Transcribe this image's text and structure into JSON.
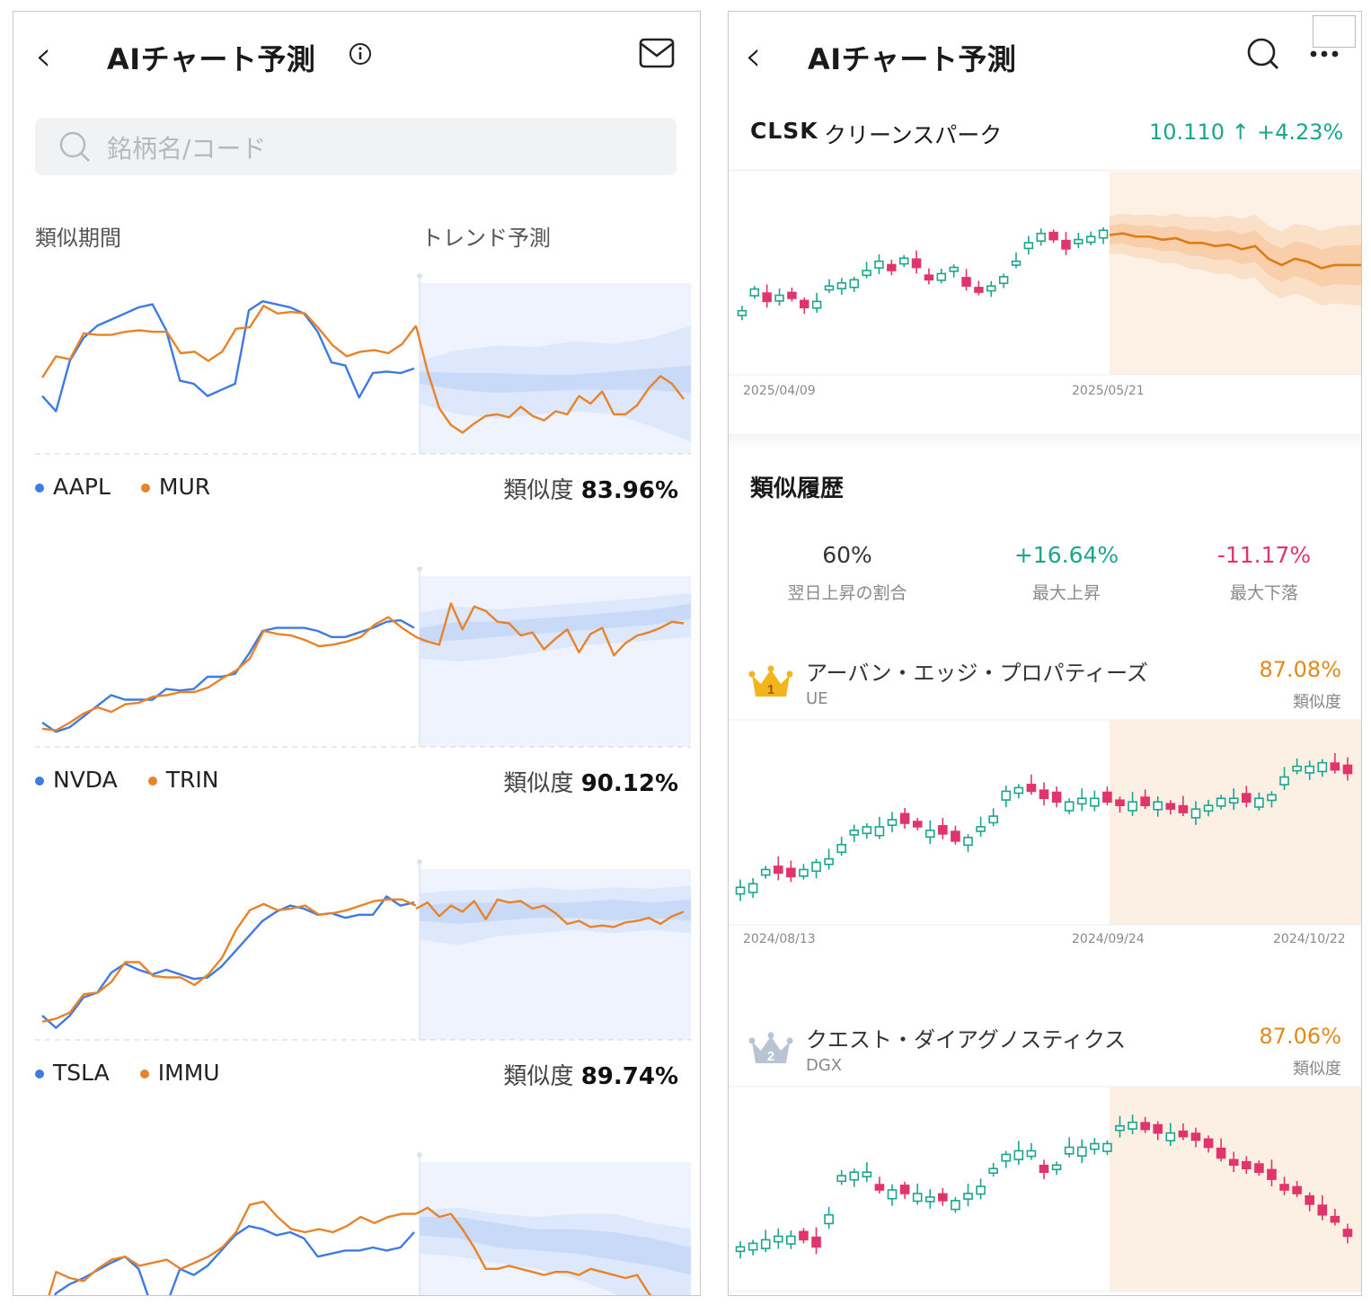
{
  "left": {
    "header": {
      "title": "AIチャート予測",
      "info_icon": "info-icon",
      "mail_icon": "mail-icon"
    },
    "search": {
      "placeholder": "銘柄名/コード"
    },
    "section_labels": {
      "similar_period": "類似期間",
      "trend_forecast": "トレンド予測"
    },
    "similarity_label": "類似度",
    "pairs": [
      {
        "a": "AAPL",
        "b": "MUR",
        "similarity": "83.96%",
        "blue": [
          0.32,
          0.22,
          0.55,
          0.7,
          0.78,
          0.82,
          0.86,
          0.9,
          0.92,
          0.75,
          0.42,
          0.4,
          0.32,
          0.36,
          0.4,
          0.88,
          0.94,
          0.92,
          0.9,
          0.86,
          0.74,
          0.54,
          0.52,
          0.31,
          0.47,
          0.48,
          0.47,
          0.5
        ],
        "orange": [
          0.44,
          0.58,
          0.56,
          0.73,
          0.72,
          0.72,
          0.74,
          0.75,
          0.74,
          0.74,
          0.6,
          0.61,
          0.55,
          0.61,
          0.76,
          0.77,
          0.91,
          0.86,
          0.87,
          0.86,
          0.76,
          0.65,
          0.58,
          0.61,
          0.62,
          0.6,
          0.66,
          0.78
        ],
        "forecast": [
          0.78,
          0.48,
          0.24,
          0.13,
          0.08,
          0.14,
          0.19,
          0.2,
          0.18,
          0.25,
          0.19,
          0.16,
          0.22,
          0.2,
          0.32,
          0.27,
          0.35,
          0.2,
          0.2,
          0.26,
          0.37,
          0.45,
          0.4,
          0.3
        ],
        "band_inner": [
          [
            0.48,
            0.4
          ],
          [
            0.47,
            0.36
          ],
          [
            0.47,
            0.34
          ],
          [
            0.46,
            0.35
          ],
          [
            0.46,
            0.36
          ],
          [
            0.48,
            0.36
          ],
          [
            0.5,
            0.36
          ],
          [
            0.52,
            0.34
          ]
        ],
        "band_outer": [
          [
            0.55,
            0.27
          ],
          [
            0.62,
            0.2
          ],
          [
            0.65,
            0.17
          ],
          [
            0.64,
            0.2
          ],
          [
            0.68,
            0.22
          ],
          [
            0.66,
            0.2
          ],
          [
            0.7,
            0.12
          ],
          [
            0.78,
            0.02
          ]
        ]
      },
      {
        "a": "NVDA",
        "b": "TRIN",
        "similarity": "90.12%",
        "blue": [
          0.1,
          0.04,
          0.07,
          0.14,
          0.21,
          0.28,
          0.25,
          0.25,
          0.25,
          0.32,
          0.31,
          0.32,
          0.4,
          0.4,
          0.42,
          0.55,
          0.7,
          0.72,
          0.72,
          0.72,
          0.7,
          0.66,
          0.66,
          0.69,
          0.72,
          0.76,
          0.77,
          0.72
        ],
        "orange": [
          0.06,
          0.05,
          0.1,
          0.16,
          0.2,
          0.17,
          0.22,
          0.23,
          0.27,
          0.28,
          0.3,
          0.3,
          0.33,
          0.39,
          0.44,
          0.52,
          0.7,
          0.68,
          0.67,
          0.64,
          0.6,
          0.61,
          0.63,
          0.66,
          0.74,
          0.79,
          0.72,
          0.66
        ],
        "forecast": [
          0.66,
          0.63,
          0.61,
          0.88,
          0.71,
          0.86,
          0.83,
          0.76,
          0.75,
          0.67,
          0.69,
          0.58,
          0.65,
          0.71,
          0.56,
          0.68,
          0.72,
          0.54,
          0.62,
          0.67,
          0.69,
          0.72,
          0.76,
          0.75
        ],
        "band_inner": [
          [
            0.72,
            0.62
          ],
          [
            0.76,
            0.64
          ],
          [
            0.76,
            0.66
          ],
          [
            0.78,
            0.68
          ],
          [
            0.8,
            0.7
          ],
          [
            0.82,
            0.72
          ],
          [
            0.84,
            0.74
          ],
          [
            0.88,
            0.78
          ]
        ],
        "band_outer": [
          [
            0.82,
            0.52
          ],
          [
            0.86,
            0.5
          ],
          [
            0.84,
            0.52
          ],
          [
            0.86,
            0.56
          ],
          [
            0.88,
            0.6
          ],
          [
            0.9,
            0.62
          ],
          [
            0.92,
            0.64
          ],
          [
            0.95,
            0.66
          ]
        ]
      },
      {
        "a": "TSLA",
        "b": "IMMU",
        "similarity": "89.74%",
        "blue": [
          0.1,
          0.02,
          0.1,
          0.22,
          0.25,
          0.38,
          0.44,
          0.4,
          0.37,
          0.4,
          0.37,
          0.34,
          0.35,
          0.42,
          0.52,
          0.62,
          0.72,
          0.78,
          0.82,
          0.8,
          0.76,
          0.77,
          0.74,
          0.76,
          0.76,
          0.88,
          0.82,
          0.84
        ],
        "orange": [
          0.06,
          0.08,
          0.12,
          0.24,
          0.25,
          0.32,
          0.45,
          0.45,
          0.36,
          0.35,
          0.35,
          0.3,
          0.37,
          0.48,
          0.66,
          0.79,
          0.83,
          0.79,
          0.8,
          0.82,
          0.76,
          0.77,
          0.79,
          0.82,
          0.85,
          0.86,
          0.86,
          0.82
        ],
        "forecast": [
          0.8,
          0.84,
          0.75,
          0.82,
          0.78,
          0.85,
          0.73,
          0.86,
          0.84,
          0.85,
          0.8,
          0.82,
          0.77,
          0.7,
          0.72,
          0.68,
          0.69,
          0.68,
          0.71,
          0.72,
          0.74,
          0.7,
          0.75,
          0.78
        ],
        "band_inner": [
          [
            0.82,
            0.72
          ],
          [
            0.84,
            0.7
          ],
          [
            0.84,
            0.72
          ],
          [
            0.84,
            0.74
          ],
          [
            0.84,
            0.74
          ],
          [
            0.86,
            0.72
          ],
          [
            0.84,
            0.74
          ],
          [
            0.86,
            0.72
          ]
        ],
        "band_outer": [
          [
            0.9,
            0.6
          ],
          [
            0.92,
            0.56
          ],
          [
            0.92,
            0.62
          ],
          [
            0.94,
            0.64
          ],
          [
            0.92,
            0.66
          ],
          [
            0.94,
            0.64
          ],
          [
            0.93,
            0.66
          ],
          [
            0.95,
            0.64
          ]
        ]
      },
      {
        "a": "",
        "b": "",
        "similarity": "",
        "blue": [
          0.02,
          0.2,
          0.26,
          0.3,
          0.35,
          0.4,
          0.44,
          0.36,
          0.1,
          0.12,
          0.36,
          0.32,
          0.38,
          0.48,
          0.58,
          0.64,
          0.62,
          0.58,
          0.6,
          0.56,
          0.44,
          0.46,
          0.48,
          0.48,
          0.5,
          0.48,
          0.5,
          0.6
        ],
        "orange": [
          0.04,
          0.34,
          0.3,
          0.28,
          0.36,
          0.42,
          0.44,
          0.38,
          0.4,
          0.42,
          0.36,
          0.4,
          0.44,
          0.5,
          0.6,
          0.78,
          0.8,
          0.7,
          0.62,
          0.6,
          0.62,
          0.6,
          0.64,
          0.7,
          0.66,
          0.7,
          0.72,
          0.72
        ],
        "forecast": [
          0.72,
          0.76,
          0.7,
          0.72,
          0.62,
          0.5,
          0.36,
          0.36,
          0.38,
          0.36,
          0.34,
          0.32,
          0.34,
          0.34,
          0.32,
          0.36,
          0.34,
          0.32,
          0.3,
          0.32,
          0.2,
          0.12,
          0.06,
          0.05
        ],
        "band_inner": [
          [
            0.7,
            0.58
          ],
          [
            0.7,
            0.56
          ],
          [
            0.66,
            0.5
          ],
          [
            0.62,
            0.48
          ],
          [
            0.62,
            0.46
          ],
          [
            0.6,
            0.42
          ],
          [
            0.56,
            0.38
          ],
          [
            0.5,
            0.32
          ]
        ],
        "band_outer": [
          [
            0.74,
            0.46
          ],
          [
            0.76,
            0.44
          ],
          [
            0.72,
            0.4
          ],
          [
            0.7,
            0.36
          ],
          [
            0.72,
            0.3
          ],
          [
            0.72,
            0.2
          ],
          [
            0.66,
            0.1
          ],
          [
            0.62,
            0.06
          ]
        ]
      }
    ]
  },
  "right": {
    "header": {
      "title": "AIチャート予測",
      "search_icon": "search-icon",
      "more_icon": "more-icon"
    },
    "stock": {
      "code": "CLSK",
      "name": "クリーンスパーク",
      "price": "10.110",
      "change": "+4.23%"
    },
    "main_chart": {
      "dates": [
        "2025/04/09",
        "2025/05/21"
      ],
      "candles": [
        0.24,
        0.38,
        0.3,
        0.34,
        0.32,
        0.26,
        0.3,
        0.4,
        0.42,
        0.44,
        0.5,
        0.56,
        0.5,
        0.58,
        0.52,
        0.44,
        0.48,
        0.52,
        0.4,
        0.36,
        0.4,
        0.46,
        0.56,
        0.68,
        0.74,
        0.7,
        0.64,
        0.7,
        0.72,
        0.76
      ],
      "forecast_line": [
        0.77,
        0.78,
        0.76,
        0.76,
        0.74,
        0.75,
        0.72,
        0.72,
        0.7,
        0.71,
        0.68,
        0.7,
        0.62,
        0.58,
        0.62,
        0.6,
        0.56,
        0.58,
        0.58,
        0.58
      ]
    },
    "history": {
      "title": "類似履歴",
      "stats": [
        {
          "value": "60%",
          "label": "翌日上昇の割合",
          "color": "#333333"
        },
        {
          "value": "+16.64%",
          "label": "最大上昇",
          "color": "#1ba58e"
        },
        {
          "value": "-11.17%",
          "label": "最大下落",
          "color": "#e0356a"
        }
      ],
      "items": [
        {
          "rank": "1",
          "name": "アーバン・エッジ・プロパティーズ",
          "code": "UE",
          "similarity": "87.08%",
          "similarity_label": "類似度",
          "dates": [
            "2024/08/13",
            "2024/09/24",
            "2024/10/22"
          ],
          "candles": [
            0.14,
            0.16,
            0.24,
            0.22,
            0.2,
            0.24,
            0.28,
            0.3,
            0.38,
            0.46,
            0.48,
            0.48,
            0.52,
            0.5,
            0.48,
            0.46,
            0.44,
            0.4,
            0.42,
            0.48,
            0.54,
            0.68,
            0.7,
            0.68,
            0.64,
            0.62,
            0.62,
            0.64,
            0.64,
            0.62,
            0.6,
            0.62,
            0.6,
            0.62,
            0.58,
            0.56,
            0.58,
            0.6,
            0.64,
            0.64,
            0.62,
            0.64,
            0.66,
            0.76,
            0.82,
            0.82,
            0.84,
            0.8,
            0.78
          ]
        },
        {
          "rank": "2",
          "name": "クエスト・ダイアグノスティクス",
          "code": "DGX",
          "similarity": "87.06%",
          "similarity_label": "類似度",
          "dates": [],
          "candles": [
            0.18,
            0.2,
            0.22,
            0.24,
            0.24,
            0.22,
            0.18,
            0.36,
            0.58,
            0.6,
            0.6,
            0.5,
            0.5,
            0.48,
            0.48,
            0.46,
            0.44,
            0.44,
            0.48,
            0.52,
            0.62,
            0.7,
            0.72,
            0.72,
            0.6,
            0.64,
            0.74,
            0.74,
            0.76,
            0.76,
            0.86,
            0.88,
            0.84,
            0.82,
            0.82,
            0.8,
            0.78,
            0.74,
            0.68,
            0.64,
            0.62,
            0.6,
            0.56,
            0.5,
            0.48,
            0.42,
            0.36,
            0.32,
            0.24
          ]
        }
      ]
    }
  },
  "colors": {
    "blue": "#3d7be3",
    "orange": "#e8832a",
    "band_blue": "#dfe9fc",
    "band_orange": "#fcefe3",
    "up": "#1ba58e",
    "down": "#e0356a"
  }
}
